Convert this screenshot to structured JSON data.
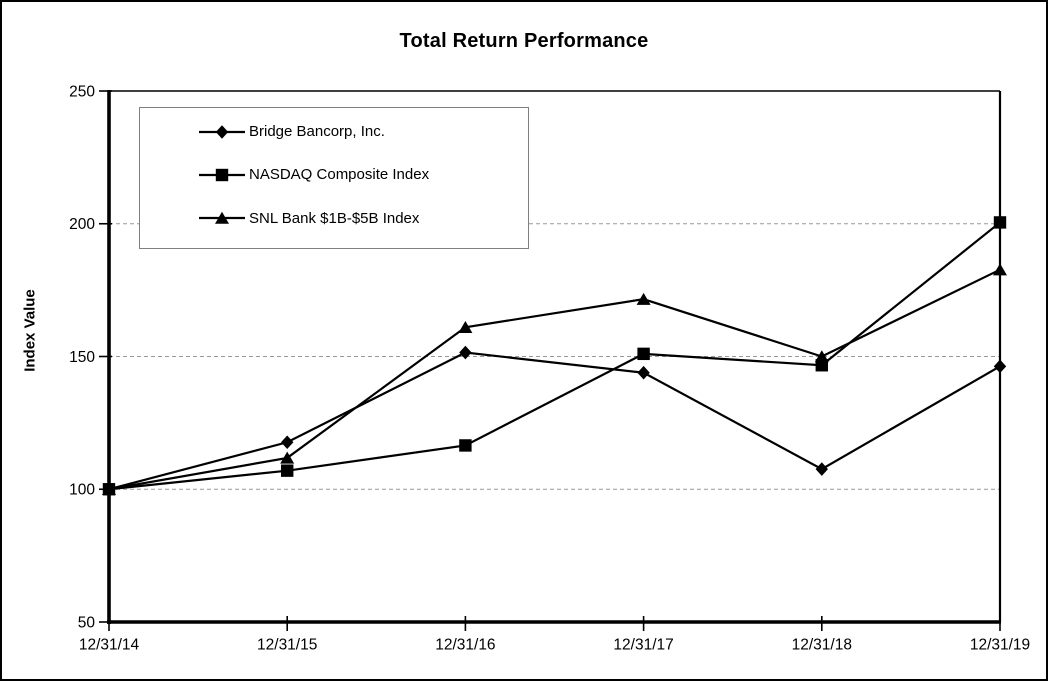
{
  "chart_data": {
    "type": "line",
    "title": "Total Return Performance",
    "xlabel": "",
    "ylabel": "Index Value",
    "ylim": [
      50,
      250
    ],
    "ytick_step": 50,
    "grid": "horizontal-dashed",
    "grid_color": "#999999",
    "line_color": "#000000",
    "legend_position": "top-left-inside",
    "categories": [
      "12/31/14",
      "12/31/15",
      "12/31/16",
      "12/31/17",
      "12/31/18",
      "12/31/19"
    ],
    "series": [
      {
        "name": "Bridge Bancorp, Inc.",
        "marker": "diamond",
        "color": "#000000",
        "values": [
          100.0,
          117.7,
          151.5,
          143.9,
          107.6,
          146.3
        ]
      },
      {
        "name": "NASDAQ Composite Index",
        "marker": "square",
        "color": "#000000",
        "values": [
          100.0,
          107.0,
          116.5,
          151.0,
          146.7,
          200.5
        ]
      },
      {
        "name": "SNL Bank $1B-$5B Index",
        "marker": "triangle",
        "color": "#000000",
        "values": [
          100.0,
          111.8,
          161.0,
          171.6,
          150.0,
          182.7
        ]
      }
    ]
  }
}
